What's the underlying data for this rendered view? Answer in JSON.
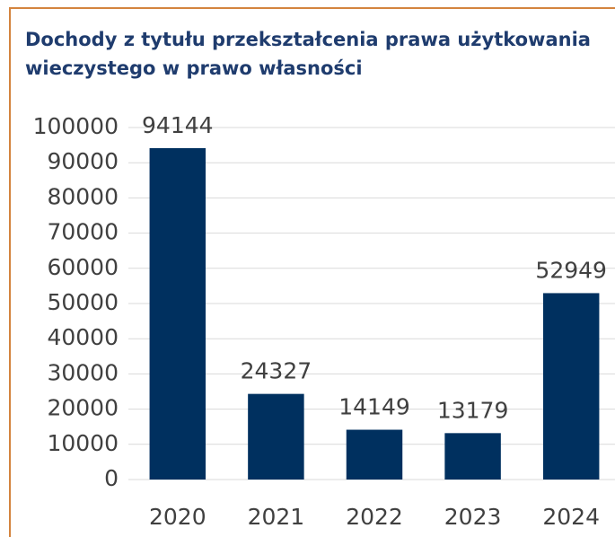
{
  "chart_data": {
    "type": "bar",
    "title": "Dochody z tytułu przekształcenia prawa użytkowania wieczystego w prawo własności",
    "categories": [
      "2020",
      "2021",
      "2022",
      "2023",
      "2024"
    ],
    "values": [
      94144,
      24327,
      14149,
      13179,
      52949
    ],
    "color": "#00305f",
    "ylim": [
      0,
      100000
    ],
    "yticks": [
      0,
      10000,
      20000,
      30000,
      40000,
      50000,
      60000,
      70000,
      80000,
      90000,
      100000
    ],
    "grid": true
  }
}
